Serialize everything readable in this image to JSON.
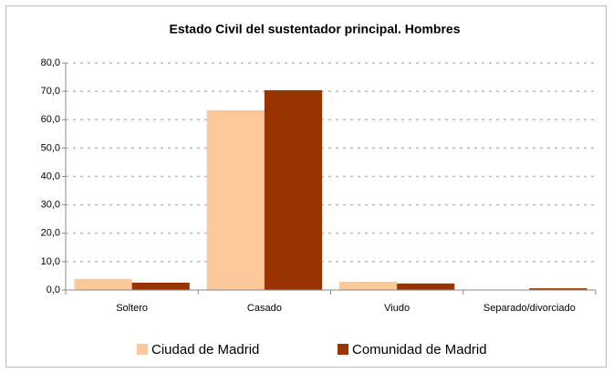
{
  "chart_data": {
    "type": "bar",
    "title": "Estado Civil del sustentador principal. Hombres",
    "categories": [
      "Soltero",
      "Casado",
      "Viudo",
      "Separado/divorciado"
    ],
    "series": [
      {
        "name": "Ciudad de Madrid",
        "color": "#fdc99a",
        "values": [
          3.9,
          63.3,
          2.9,
          0.1
        ]
      },
      {
        "name": "Comunidad de Madrid",
        "color": "#993300",
        "values": [
          2.6,
          70.4,
          2.3,
          0.6
        ]
      }
    ],
    "ylim": [
      0,
      80
    ],
    "yticks": [
      {
        "value": 0,
        "label": "0,0"
      },
      {
        "value": 10,
        "label": "10,0"
      },
      {
        "value": 20,
        "label": "20,0"
      },
      {
        "value": 30,
        "label": "30,0"
      },
      {
        "value": 40,
        "label": "40,0"
      },
      {
        "value": 50,
        "label": "50,0"
      },
      {
        "value": 60,
        "label": "60,0"
      },
      {
        "value": 70,
        "label": "70,0"
      },
      {
        "value": 80,
        "label": "80,0"
      }
    ],
    "grid": true,
    "legend": "bottom"
  }
}
